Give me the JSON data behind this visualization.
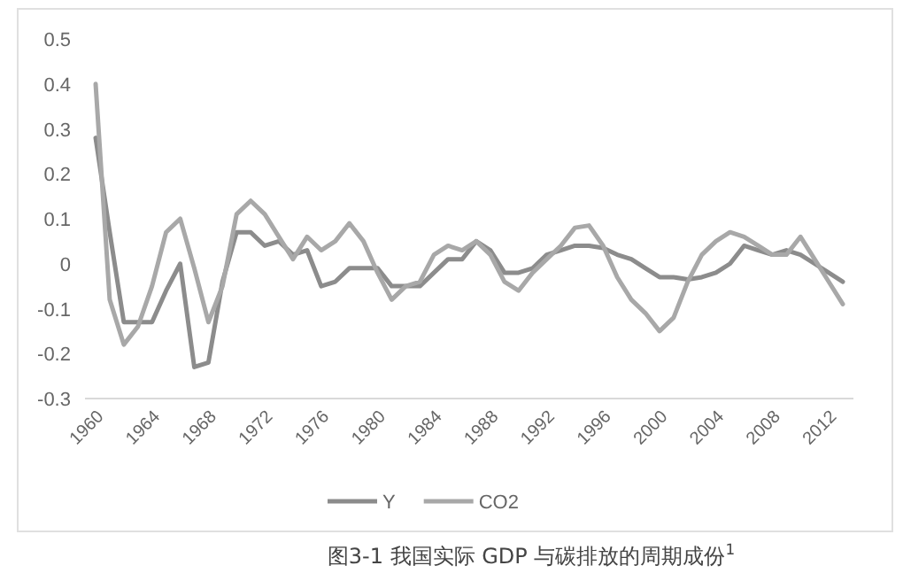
{
  "chart_data": {
    "type": "line",
    "categories": [
      "1960",
      null,
      null,
      null,
      "1964",
      null,
      null,
      null,
      "1968",
      null,
      null,
      null,
      "1972",
      null,
      null,
      null,
      "1976",
      null,
      null,
      null,
      "1980",
      null,
      null,
      null,
      "1984",
      null,
      null,
      null,
      "1988",
      null,
      null,
      null,
      "1992",
      null,
      null,
      null,
      "1996",
      null,
      null,
      null,
      "2000",
      null,
      null,
      null,
      "2004",
      null,
      null,
      null,
      "2008",
      null,
      null,
      null,
      "2012",
      null
    ],
    "series": [
      {
        "name": "Y",
        "color": "#8c8c8c",
        "values": [
          0.28,
          0.07,
          -0.13,
          -0.13,
          -0.13,
          -0.06,
          0.0,
          -0.23,
          -0.22,
          -0.04,
          0.07,
          0.07,
          0.04,
          0.05,
          0.02,
          0.03,
          -0.05,
          -0.04,
          -0.01,
          -0.01,
          -0.01,
          -0.05,
          -0.05,
          -0.05,
          -0.02,
          0.01,
          0.01,
          0.05,
          0.03,
          -0.02,
          -0.02,
          -0.01,
          0.02,
          0.03,
          0.04,
          0.04,
          0.035,
          0.02,
          0.01,
          -0.01,
          -0.03,
          -0.03,
          -0.035,
          -0.03,
          -0.02,
          0.0,
          0.04,
          0.03,
          0.02,
          0.03,
          0.02,
          0.0,
          -0.02,
          -0.04
        ]
      },
      {
        "name": "CO2",
        "color": "#a8a8a8",
        "values": [
          0.4,
          -0.08,
          -0.18,
          -0.14,
          -0.05,
          0.07,
          0.1,
          -0.01,
          -0.13,
          -0.05,
          0.11,
          0.14,
          0.11,
          0.06,
          0.01,
          0.06,
          0.03,
          0.05,
          0.09,
          0.05,
          -0.02,
          -0.08,
          -0.05,
          -0.04,
          0.02,
          0.04,
          0.03,
          0.05,
          0.02,
          -0.04,
          -0.06,
          -0.02,
          0.01,
          0.04,
          0.08,
          0.085,
          0.04,
          -0.03,
          -0.08,
          -0.11,
          -0.15,
          -0.12,
          -0.04,
          0.02,
          0.05,
          0.07,
          0.06,
          0.04,
          0.02,
          0.02,
          0.06,
          0.01,
          -0.04,
          -0.09
        ]
      }
    ],
    "ylim": [
      -0.3,
      0.5
    ],
    "yticks": [
      -0.3,
      -0.2,
      -0.1,
      0,
      0.1,
      0.2,
      0.3,
      0.4,
      0.5
    ],
    "grid": false,
    "legend": "bottom",
    "line_style": "solid",
    "marker": "none",
    "annotations": [
      "图3-1  我国实际 GDP 与碳排放的周期成份$^{1}$"
    ]
  }
}
